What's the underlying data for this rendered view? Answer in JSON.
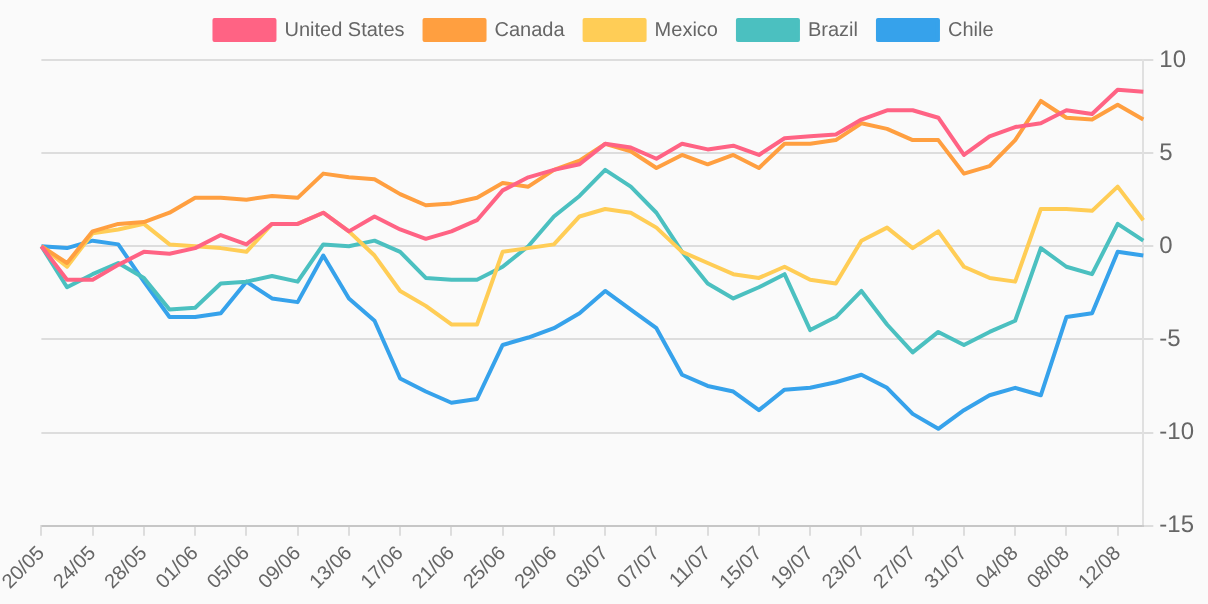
{
  "chart_data": {
    "type": "line",
    "categories": [
      "20/05",
      null,
      "24/05",
      null,
      "28/05",
      null,
      "01/06",
      null,
      "05/06",
      null,
      "09/06",
      null,
      "13/06",
      null,
      "17/06",
      null,
      "21/06",
      null,
      "25/06",
      null,
      "29/06",
      null,
      "03/07",
      null,
      "07/07",
      null,
      "11/07",
      null,
      "15/07",
      null,
      "19/07",
      null,
      "23/07",
      null,
      "27/07",
      null,
      "31/07",
      null,
      "04/08",
      null,
      "08/08",
      null,
      "12/08",
      null
    ],
    "series": [
      {
        "name": "United States",
        "color": "#ff6384",
        "values": [
          0,
          -1.8,
          -1.8,
          -1.0,
          -0.3,
          -0.4,
          -0.1,
          0.6,
          0.1,
          1.2,
          1.2,
          1.8,
          0.8,
          1.6,
          0.9,
          0.4,
          0.8,
          1.4,
          3.0,
          3.7,
          4.1,
          4.4,
          5.5,
          5.3,
          4.7,
          5.5,
          5.2,
          5.4,
          4.9,
          5.8,
          5.9,
          6.0,
          6.8,
          7.3,
          7.3,
          6.9,
          4.9,
          5.9,
          6.4,
          6.6,
          7.3,
          7.1,
          8.4,
          8.3
        ]
      },
      {
        "name": "Canada",
        "color": "#ff9f40",
        "values": [
          0,
          -0.9,
          0.8,
          1.2,
          1.3,
          1.8,
          2.6,
          2.6,
          2.5,
          2.7,
          2.6,
          3.9,
          3.7,
          3.6,
          2.8,
          2.2,
          2.3,
          2.6,
          3.4,
          3.2,
          4.1,
          4.6,
          5.5,
          5.1,
          4.2,
          4.9,
          4.4,
          4.9,
          4.2,
          5.5,
          5.5,
          5.7,
          6.6,
          6.3,
          5.7,
          5.7,
          3.9,
          4.3,
          5.7,
          7.8,
          6.9,
          6.8,
          7.6,
          6.8
        ]
      },
      {
        "name": "Mexico",
        "color": "#ffcd56",
        "values": [
          0,
          -1.1,
          0.7,
          0.9,
          1.2,
          0.1,
          0,
          -0.1,
          -0.3,
          1.2,
          1.2,
          1.8,
          0.8,
          -0.5,
          -2.4,
          -3.2,
          -4.2,
          -4.2,
          -0.3,
          -0.1,
          0.1,
          1.6,
          2.0,
          1.8,
          1.0,
          -0.3,
          -0.9,
          -1.5,
          -1.7,
          -1.1,
          -1.8,
          -2.0,
          0.3,
          1.0,
          -0.1,
          0.8,
          -1.1,
          -1.7,
          -1.9,
          2.0,
          2.0,
          1.9,
          3.2,
          1.4
        ]
      },
      {
        "name": "Brazil",
        "color": "#4bc0c0",
        "values": [
          0,
          -2.2,
          -1.5,
          -0.9,
          -1.7,
          -3.4,
          -3.3,
          -2.0,
          -1.9,
          -1.6,
          -1.9,
          0.1,
          0,
          0.3,
          -0.3,
          -1.7,
          -1.8,
          -1.8,
          -1.1,
          0,
          1.6,
          2.7,
          4.1,
          3.2,
          1.8,
          -0.3,
          -2.0,
          -2.8,
          -2.2,
          -1.5,
          -4.5,
          -3.8,
          -2.4,
          -4.2,
          -5.7,
          -4.6,
          -5.3,
          -4.6,
          -4.0,
          -0.1,
          -1.1,
          -1.5,
          1.2,
          0.3
        ]
      },
      {
        "name": "Chile",
        "color": "#36a2eb",
        "values": [
          0,
          -0.1,
          0.3,
          0.1,
          -1.9,
          -3.8,
          -3.8,
          -3.6,
          -1.9,
          -2.8,
          -3.0,
          -0.5,
          -2.8,
          -4.0,
          -7.1,
          -7.8,
          -8.4,
          -8.2,
          -5.3,
          -4.9,
          -4.4,
          -3.6,
          -2.4,
          -3.4,
          -4.4,
          -6.9,
          -7.5,
          -7.8,
          -8.8,
          -7.7,
          -7.6,
          -7.3,
          -6.9,
          -7.6,
          -9.0,
          -9.8,
          -8.8,
          -8.0,
          -7.6,
          -8.0,
          -3.8,
          -3.6,
          -0.3,
          -0.5
        ]
      }
    ],
    "ylim": [
      -15,
      10
    ],
    "yticks": [
      -15,
      -10,
      -5,
      0,
      5,
      10
    ],
    "grid": "y",
    "legend": "top",
    "marker": "none",
    "line_style": "solid"
  }
}
